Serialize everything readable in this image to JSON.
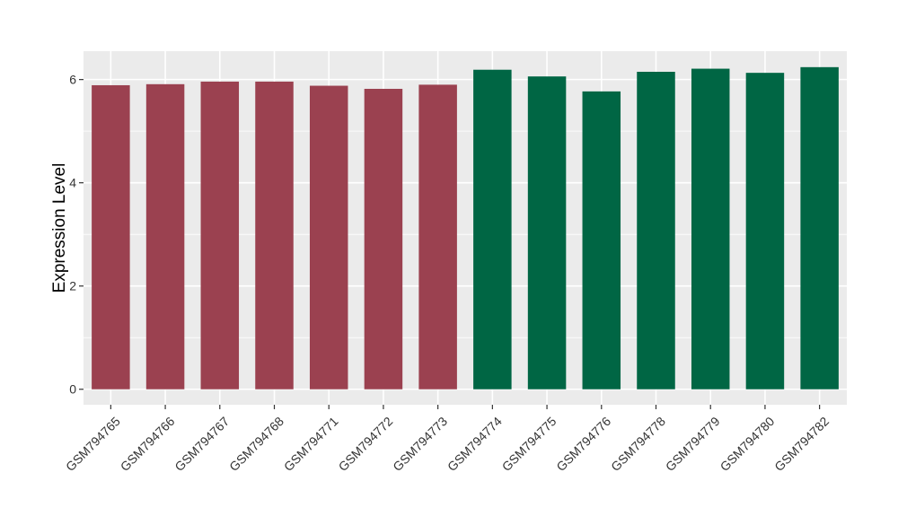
{
  "chart_data": {
    "type": "bar",
    "title": "",
    "xlabel": "",
    "ylabel": "Expression Level",
    "ylim": [
      -0.3,
      6.55
    ],
    "yticks": [
      0,
      2,
      4,
      6
    ],
    "grid": true,
    "legend": "none",
    "categories": [
      "GSM794765",
      "GSM794766",
      "GSM794767",
      "GSM794768",
      "GSM794771",
      "GSM794772",
      "GSM794773",
      "GSM794774",
      "GSM794775",
      "GSM794776",
      "GSM794778",
      "GSM794779",
      "GSM794780",
      "GSM794782"
    ],
    "values": [
      5.89,
      5.91,
      5.96,
      5.96,
      5.88,
      5.82,
      5.9,
      6.19,
      6.06,
      5.77,
      6.15,
      6.21,
      6.13,
      6.24
    ],
    "colors": [
      "#9b4150",
      "#9b4150",
      "#9b4150",
      "#9b4150",
      "#9b4150",
      "#9b4150",
      "#9b4150",
      "#006644",
      "#006644",
      "#006644",
      "#006644",
      "#006644",
      "#006644",
      "#006644"
    ],
    "panel_color": "#ebebeb",
    "grid_color": "#ffffff"
  }
}
